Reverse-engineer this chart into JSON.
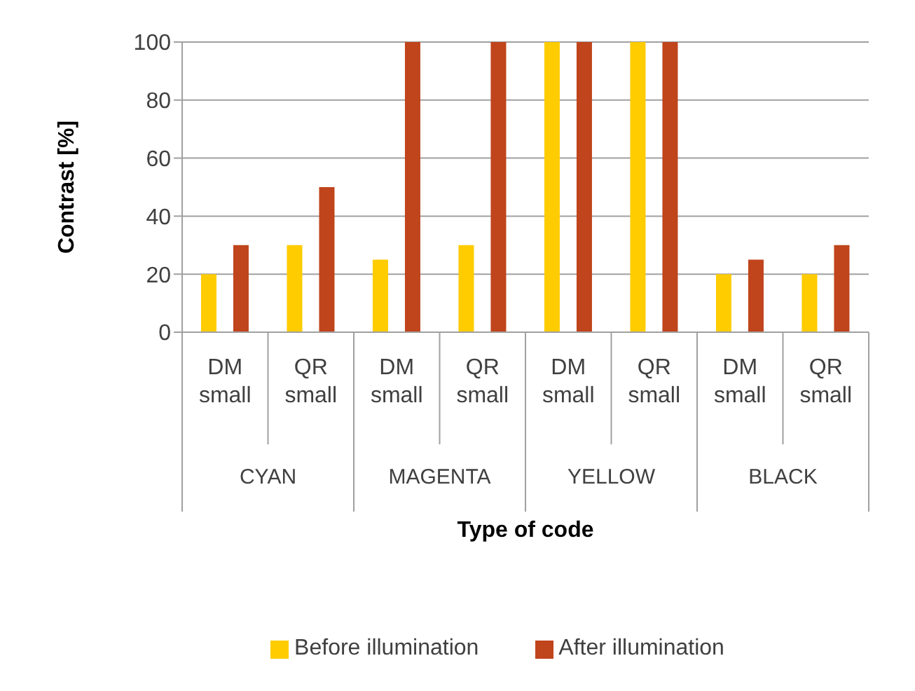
{
  "chart_data": {
    "type": "bar",
    "xlabel": "Type of code",
    "ylabel": "Contrast [%]",
    "categories": [
      "DM small",
      "QR small",
      "DM small",
      "QR small",
      "DM small",
      "QR small",
      "DM small",
      "QR small"
    ],
    "annotations": [
      "CYAN",
      "MAGENTA",
      "YELLOW",
      "BLACK"
    ],
    "series": [
      {
        "name": "Before illumination",
        "color": "#ffcc00",
        "values": [
          20,
          30,
          25,
          30,
          100,
          100,
          20,
          20
        ]
      },
      {
        "name": "After illumination",
        "color": "#c0441c",
        "values": [
          30,
          50,
          100,
          100,
          100,
          100,
          25,
          30
        ]
      }
    ],
    "ylim": [
      0,
      100
    ],
    "yticks": [
      0,
      20,
      40,
      60,
      80,
      100
    ],
    "grid": "y",
    "legend": "bottom"
  }
}
